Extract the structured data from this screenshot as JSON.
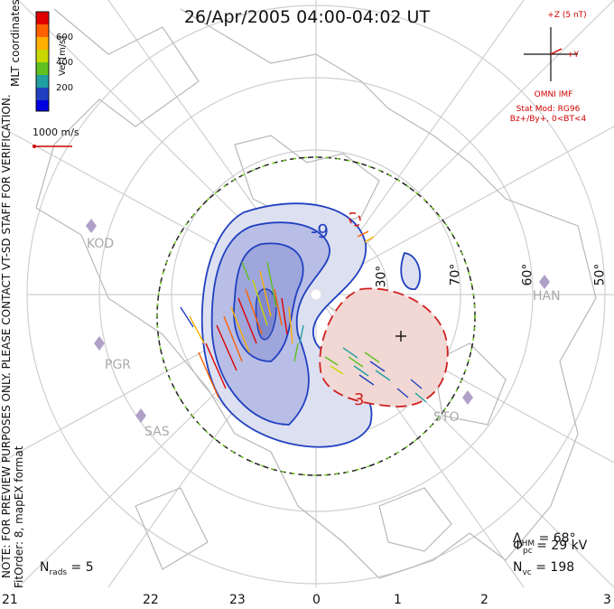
{
  "title": "26/Apr/2005 04:00-04:02 UT",
  "colorbar": {
    "title": "Vel [m/s]",
    "labels": [
      "600",
      "400",
      "200"
    ],
    "colors": [
      "#e00000",
      "#ff6000",
      "#ffb000",
      "#c8d800",
      "#60c020",
      "#20a0a0",
      "#2040c0",
      "#0000e0"
    ]
  },
  "coords_label": "MLT coordinates",
  "watermark": "NOTE: FOR PREVIEW PURPOSES ONLY. PLEASE CONTACT VT-SD STAFF FOR VERIFICATION.",
  "fitorder_line1": "FitOrder: 8, mapEX format",
  "scale_label": "1000 m/s",
  "imf": {
    "z_label": "+Z (5 nT)",
    "y_label": "+Y",
    "omni": "OMNI IMF",
    "stat_mod": "Stat Mod: RG96",
    "bz_by": "Bz+/By+, 0<BT<4"
  },
  "contours": {
    "neg_label": "-9",
    "pos_label": "3"
  },
  "lat_labels": [
    "30°",
    "70°",
    "60°",
    "50°"
  ],
  "sites": [
    "KOD",
    "PGR",
    "SAS",
    "HAN",
    "STO"
  ],
  "stats": {
    "phi_pc": "29 kV",
    "lambda_hm": "68°",
    "n_vc": "198",
    "n_rads": "5"
  },
  "mlt_ticks": [
    "21",
    "22",
    "23",
    "0",
    "1",
    "2",
    "3"
  ],
  "colors": {
    "negative_cell": "#2040c0",
    "positive_cell": "#d02020",
    "hmb": "#70d020"
  }
}
